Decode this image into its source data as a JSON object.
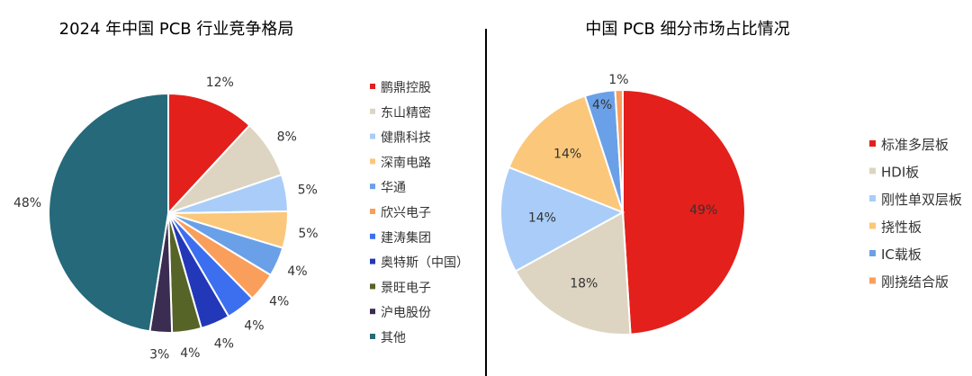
{
  "chart_data": [
    {
      "type": "pie",
      "title": "2024 年中国 PCB 行业竞争格局",
      "legend_position": "right",
      "label_position": "outside",
      "slices": [
        {
          "label": "鹏鼎控股",
          "value": 12,
          "display": "12%",
          "color": "#e3201b"
        },
        {
          "label": "东山精密",
          "value": 8,
          "display": "8%",
          "color": "#ddd5c1"
        },
        {
          "label": "健鼎科技",
          "value": 5,
          "display": "5%",
          "color": "#a9cdf8"
        },
        {
          "label": "深南电路",
          "value": 5,
          "display": "5%",
          "color": "#fbc77a"
        },
        {
          "label": "华通",
          "value": 4,
          "display": "4%",
          "color": "#6aa0e8"
        },
        {
          "label": "欣兴电子",
          "value": 4,
          "display": "4%",
          "color": "#fa9e5c"
        },
        {
          "label": "建涛集团",
          "value": 4,
          "display": "4%",
          "color": "#3c6ff0"
        },
        {
          "label": "奥特斯（中国）",
          "value": 4,
          "display": "4%",
          "color": "#2238b8"
        },
        {
          "label": "景旺电子",
          "value": 4,
          "display": "4%",
          "color": "#566428"
        },
        {
          "label": "沪电股份",
          "value": 3,
          "display": "3%",
          "color": "#3b2c52"
        },
        {
          "label": "其他",
          "value": 48,
          "display": "48%",
          "color": "#25697a"
        }
      ]
    },
    {
      "type": "pie",
      "title": "中国 PCB 细分市场占比情况",
      "legend_position": "right",
      "label_position": "inside",
      "slices": [
        {
          "label": "标准多层板",
          "value": 49,
          "display": "49%",
          "color": "#e3201b"
        },
        {
          "label": "HDI板",
          "value": 18,
          "display": "18%",
          "color": "#ddd5c1"
        },
        {
          "label": "刚性单双层板",
          "value": 14,
          "display": "14%",
          "color": "#a9cdf8"
        },
        {
          "label": "挠性板",
          "value": 14,
          "display": "14%",
          "color": "#fbc77a"
        },
        {
          "label": "IC载板",
          "value": 4,
          "display": "4%",
          "color": "#6aa0e8"
        },
        {
          "label": "刚挠结合版",
          "value": 1,
          "display": "1%",
          "color": "#fa9e5c"
        }
      ]
    }
  ]
}
